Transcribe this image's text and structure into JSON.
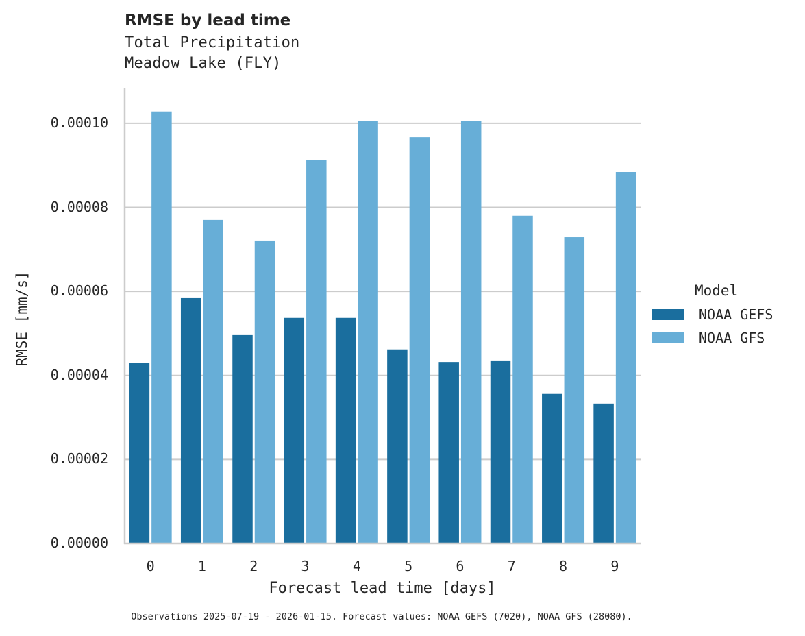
{
  "chart_data": {
    "type": "bar",
    "title": "RMSE by lead time",
    "subtitle": [
      "Total Precipitation",
      "Meadow Lake (FLY)"
    ],
    "xlabel": "Forecast lead time [days]",
    "ylabel": "RMSE [mm/s]",
    "categories": [
      "0",
      "1",
      "2",
      "3",
      "4",
      "5",
      "6",
      "7",
      "8",
      "9"
    ],
    "series": [
      {
        "name": "NOAA GEFS",
        "color": "#1a6e9e",
        "values": [
          4.29e-05,
          5.84e-05,
          4.96e-05,
          5.37e-05,
          5.37e-05,
          4.62e-05,
          4.32e-05,
          4.34e-05,
          3.56e-05,
          3.33e-05
        ]
      },
      {
        "name": "NOAA GFS",
        "color": "#67aed7",
        "values": [
          0.0001028,
          7.7e-05,
          7.21e-05,
          9.12e-05,
          0.0001005,
          9.67e-05,
          0.0001005,
          7.8e-05,
          7.29e-05,
          8.84e-05
        ]
      }
    ],
    "ylim": [
      0,
      0.0001083
    ],
    "yticks": [
      "0.00000",
      "0.00002",
      "0.00004",
      "0.00006",
      "0.00008",
      "0.00010"
    ],
    "grid": "y",
    "legend": {
      "title": "Model",
      "position": "right"
    },
    "footnote": "Observations 2025-07-19 - 2026-01-15. Forecast values: NOAA GEFS (7020), NOAA GFS (28080)."
  },
  "colors": {
    "gefs": "#1a6e9e",
    "gfs": "#67aed7",
    "grid": "#cccccc",
    "axis": "#cccccc",
    "text": "#262626"
  }
}
